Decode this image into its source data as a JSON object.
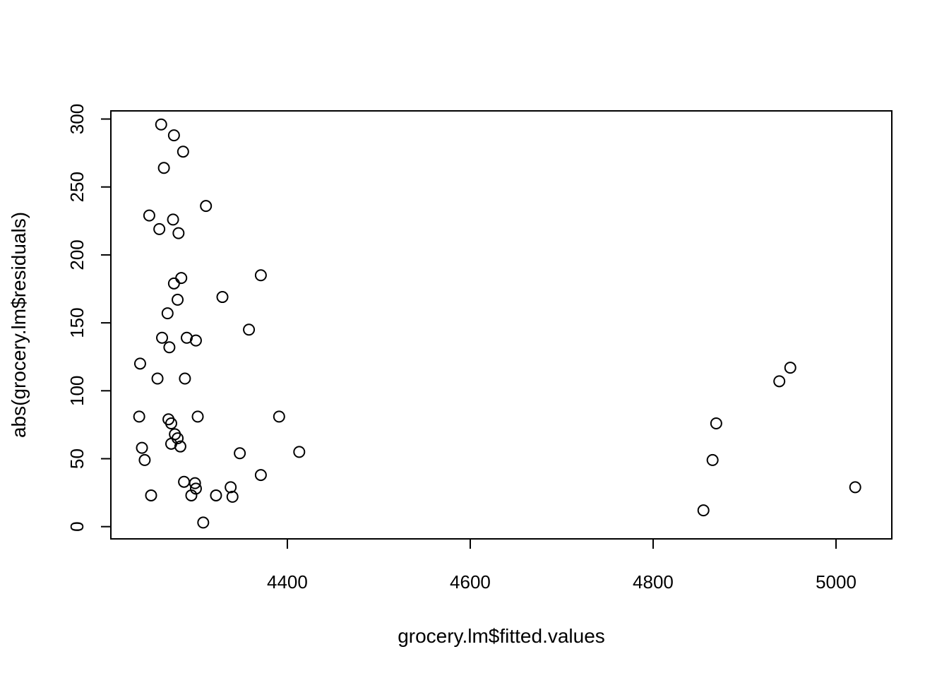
{
  "chart_data": {
    "type": "scatter",
    "title": "",
    "xlabel": "grocery.lm$fitted.values",
    "ylabel": "abs(grocery.lm$residuals)",
    "xlim": [
      4207,
      5061
    ],
    "ylim": [
      -9,
      306
    ],
    "xticks": [
      4400,
      4600,
      4800,
      5000
    ],
    "yticks": [
      0,
      50,
      100,
      150,
      200,
      250,
      300
    ],
    "grid": false,
    "legend": "none",
    "marker": "open-circle",
    "points": [
      {
        "x": 4262,
        "y": 296
      },
      {
        "x": 4276,
        "y": 288
      },
      {
        "x": 4286,
        "y": 276
      },
      {
        "x": 4265,
        "y": 264
      },
      {
        "x": 4311,
        "y": 236
      },
      {
        "x": 4249,
        "y": 229
      },
      {
        "x": 4275,
        "y": 226
      },
      {
        "x": 4260,
        "y": 219
      },
      {
        "x": 4281,
        "y": 216
      },
      {
        "x": 4371,
        "y": 185
      },
      {
        "x": 4284,
        "y": 183
      },
      {
        "x": 4276,
        "y": 179
      },
      {
        "x": 4329,
        "y": 169
      },
      {
        "x": 4280,
        "y": 167
      },
      {
        "x": 4269,
        "y": 157
      },
      {
        "x": 4358,
        "y": 145
      },
      {
        "x": 4263,
        "y": 139
      },
      {
        "x": 4290,
        "y": 139
      },
      {
        "x": 4300,
        "y": 137
      },
      {
        "x": 4271,
        "y": 132
      },
      {
        "x": 4239,
        "y": 120
      },
      {
        "x": 4258,
        "y": 109
      },
      {
        "x": 4288,
        "y": 109
      },
      {
        "x": 4238,
        "y": 81
      },
      {
        "x": 4302,
        "y": 81
      },
      {
        "x": 4391,
        "y": 81
      },
      {
        "x": 4270,
        "y": 79
      },
      {
        "x": 4273,
        "y": 76
      },
      {
        "x": 4277,
        "y": 68
      },
      {
        "x": 4280,
        "y": 65
      },
      {
        "x": 4273,
        "y": 61
      },
      {
        "x": 4283,
        "y": 59
      },
      {
        "x": 4241,
        "y": 58
      },
      {
        "x": 4413,
        "y": 55
      },
      {
        "x": 4348,
        "y": 54
      },
      {
        "x": 4244,
        "y": 49
      },
      {
        "x": 4371,
        "y": 38
      },
      {
        "x": 4287,
        "y": 33
      },
      {
        "x": 4299,
        "y": 32
      },
      {
        "x": 4300,
        "y": 28
      },
      {
        "x": 4338,
        "y": 29
      },
      {
        "x": 4295,
        "y": 23
      },
      {
        "x": 4251,
        "y": 23
      },
      {
        "x": 4322,
        "y": 23
      },
      {
        "x": 4340,
        "y": 22
      },
      {
        "x": 4308,
        "y": 3
      },
      {
        "x": 4950,
        "y": 117
      },
      {
        "x": 4938,
        "y": 107
      },
      {
        "x": 4869,
        "y": 76
      },
      {
        "x": 4865,
        "y": 49
      },
      {
        "x": 4855,
        "y": 12
      },
      {
        "x": 5021,
        "y": 29
      }
    ]
  }
}
